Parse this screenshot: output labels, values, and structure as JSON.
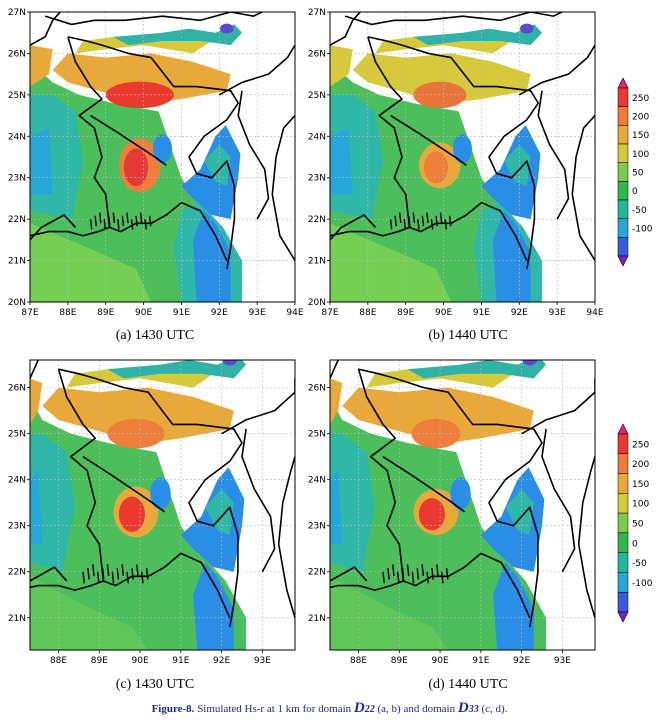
{
  "chart_data": [
    {
      "type": "heatmap",
      "panel": "a",
      "caption": "(a) 1430 UTC",
      "x_ticks": [
        "87E",
        "88E",
        "89E",
        "90E",
        "91E",
        "92E",
        "93E",
        "94E"
      ],
      "y_ticks": [
        "20N",
        "21N",
        "22N",
        "23N",
        "24N",
        "25N",
        "26N",
        "27N"
      ],
      "xlim": [
        87,
        94
      ],
      "ylim": [
        20,
        27
      ],
      "grid": true
    },
    {
      "type": "heatmap",
      "panel": "b",
      "caption": "(b) 1440 UTC",
      "x_ticks": [
        "87E",
        "88E",
        "89E",
        "90E",
        "91E",
        "92E",
        "93E",
        "94E"
      ],
      "y_ticks": [
        "20N",
        "21N",
        "22N",
        "23N",
        "24N",
        "25N",
        "26N",
        "27N"
      ],
      "xlim": [
        87,
        94
      ],
      "ylim": [
        20,
        27
      ],
      "grid": true
    },
    {
      "type": "heatmap",
      "panel": "c",
      "caption": "(c) 1430 UTC",
      "x_ticks": [
        "88E",
        "89E",
        "90E",
        "91E",
        "92E",
        "93E"
      ],
      "y_ticks": [
        "21N",
        "22N",
        "23N",
        "24N",
        "25N",
        "26N"
      ],
      "xlim": [
        87.3,
        93.8
      ],
      "ylim": [
        20.3,
        26.6
      ],
      "grid": true
    },
    {
      "type": "heatmap",
      "panel": "d",
      "caption": "(d) 1440 UTC",
      "x_ticks": [
        "88E",
        "89E",
        "90E",
        "91E",
        "92E",
        "93E"
      ],
      "y_ticks": [
        "21N",
        "22N",
        "23N",
        "24N",
        "25N",
        "26N"
      ],
      "xlim": [
        87.3,
        93.8
      ],
      "ylim": [
        20.3,
        26.6
      ],
      "grid": true
    }
  ],
  "colorbar": {
    "labels": [
      "250",
      "200",
      "150",
      "100",
      "50",
      "0",
      "-50",
      "-100"
    ],
    "colors": [
      "#f01e78",
      "#ea3a30",
      "#f07b3a",
      "#e8a83a",
      "#d6c93c",
      "#7bc94f",
      "#2fb84a",
      "#1fb89a",
      "#26a7da",
      "#3a5bd8",
      "#7a1fd0"
    ]
  },
  "caption": {
    "prefix": "Figure-8.",
    "text1": " Simulated Hs-r at 1 km for domain ",
    "d1": "D",
    "d1sub": "22",
    "text2": " (a, b) and domain ",
    "d2": "D",
    "d2sub": "33",
    "text3": " (c, d)."
  }
}
